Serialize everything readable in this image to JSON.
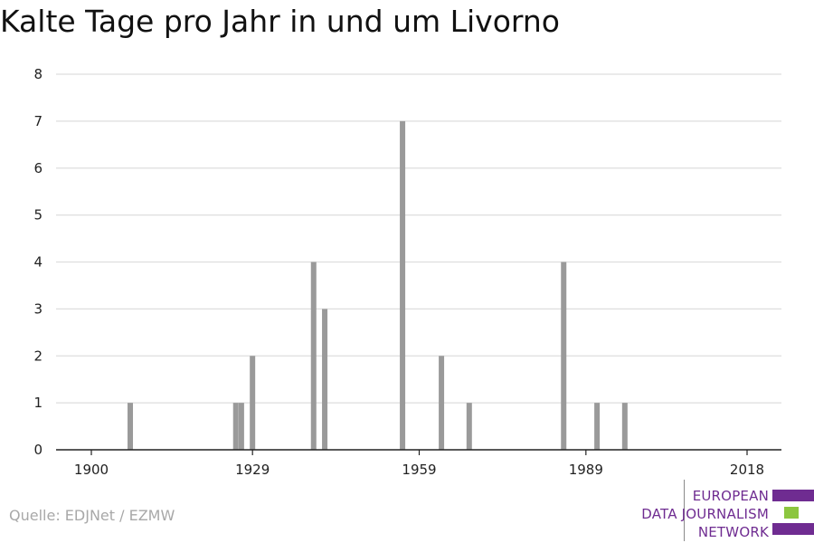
{
  "title": "Kalte Tage pro Jahr in und um Livorno",
  "source": "Quelle: EDJNet / EZMW",
  "logo": {
    "lines": [
      "EUROPEAN",
      "DATA JOURNALISM",
      "NETWORK"
    ],
    "colors": {
      "text": "#6f2c91",
      "bar_purple": "#6f2c91",
      "bar_green": "#8cc63f"
    }
  },
  "colors": {
    "bar": "#9a9a9a",
    "grid": "#dedede",
    "axis": "#222222"
  },
  "chart_data": {
    "type": "bar",
    "title": "Kalte Tage pro Jahr in und um Livorno",
    "xlabel": "",
    "ylabel": "",
    "xlim": [
      1900,
      2018
    ],
    "ylim": [
      0,
      8
    ],
    "x_ticks": [
      1900,
      1929,
      1959,
      1989,
      2018
    ],
    "y_ticks": [
      0,
      1,
      2,
      3,
      4,
      5,
      6,
      7,
      8
    ],
    "grid": true,
    "x": [
      1907,
      1926,
      1927,
      1929,
      1940,
      1942,
      1956,
      1963,
      1968,
      1985,
      1991,
      1996
    ],
    "values": [
      1,
      1,
      1,
      2,
      4,
      3,
      7,
      2,
      1,
      4,
      1,
      1
    ]
  }
}
